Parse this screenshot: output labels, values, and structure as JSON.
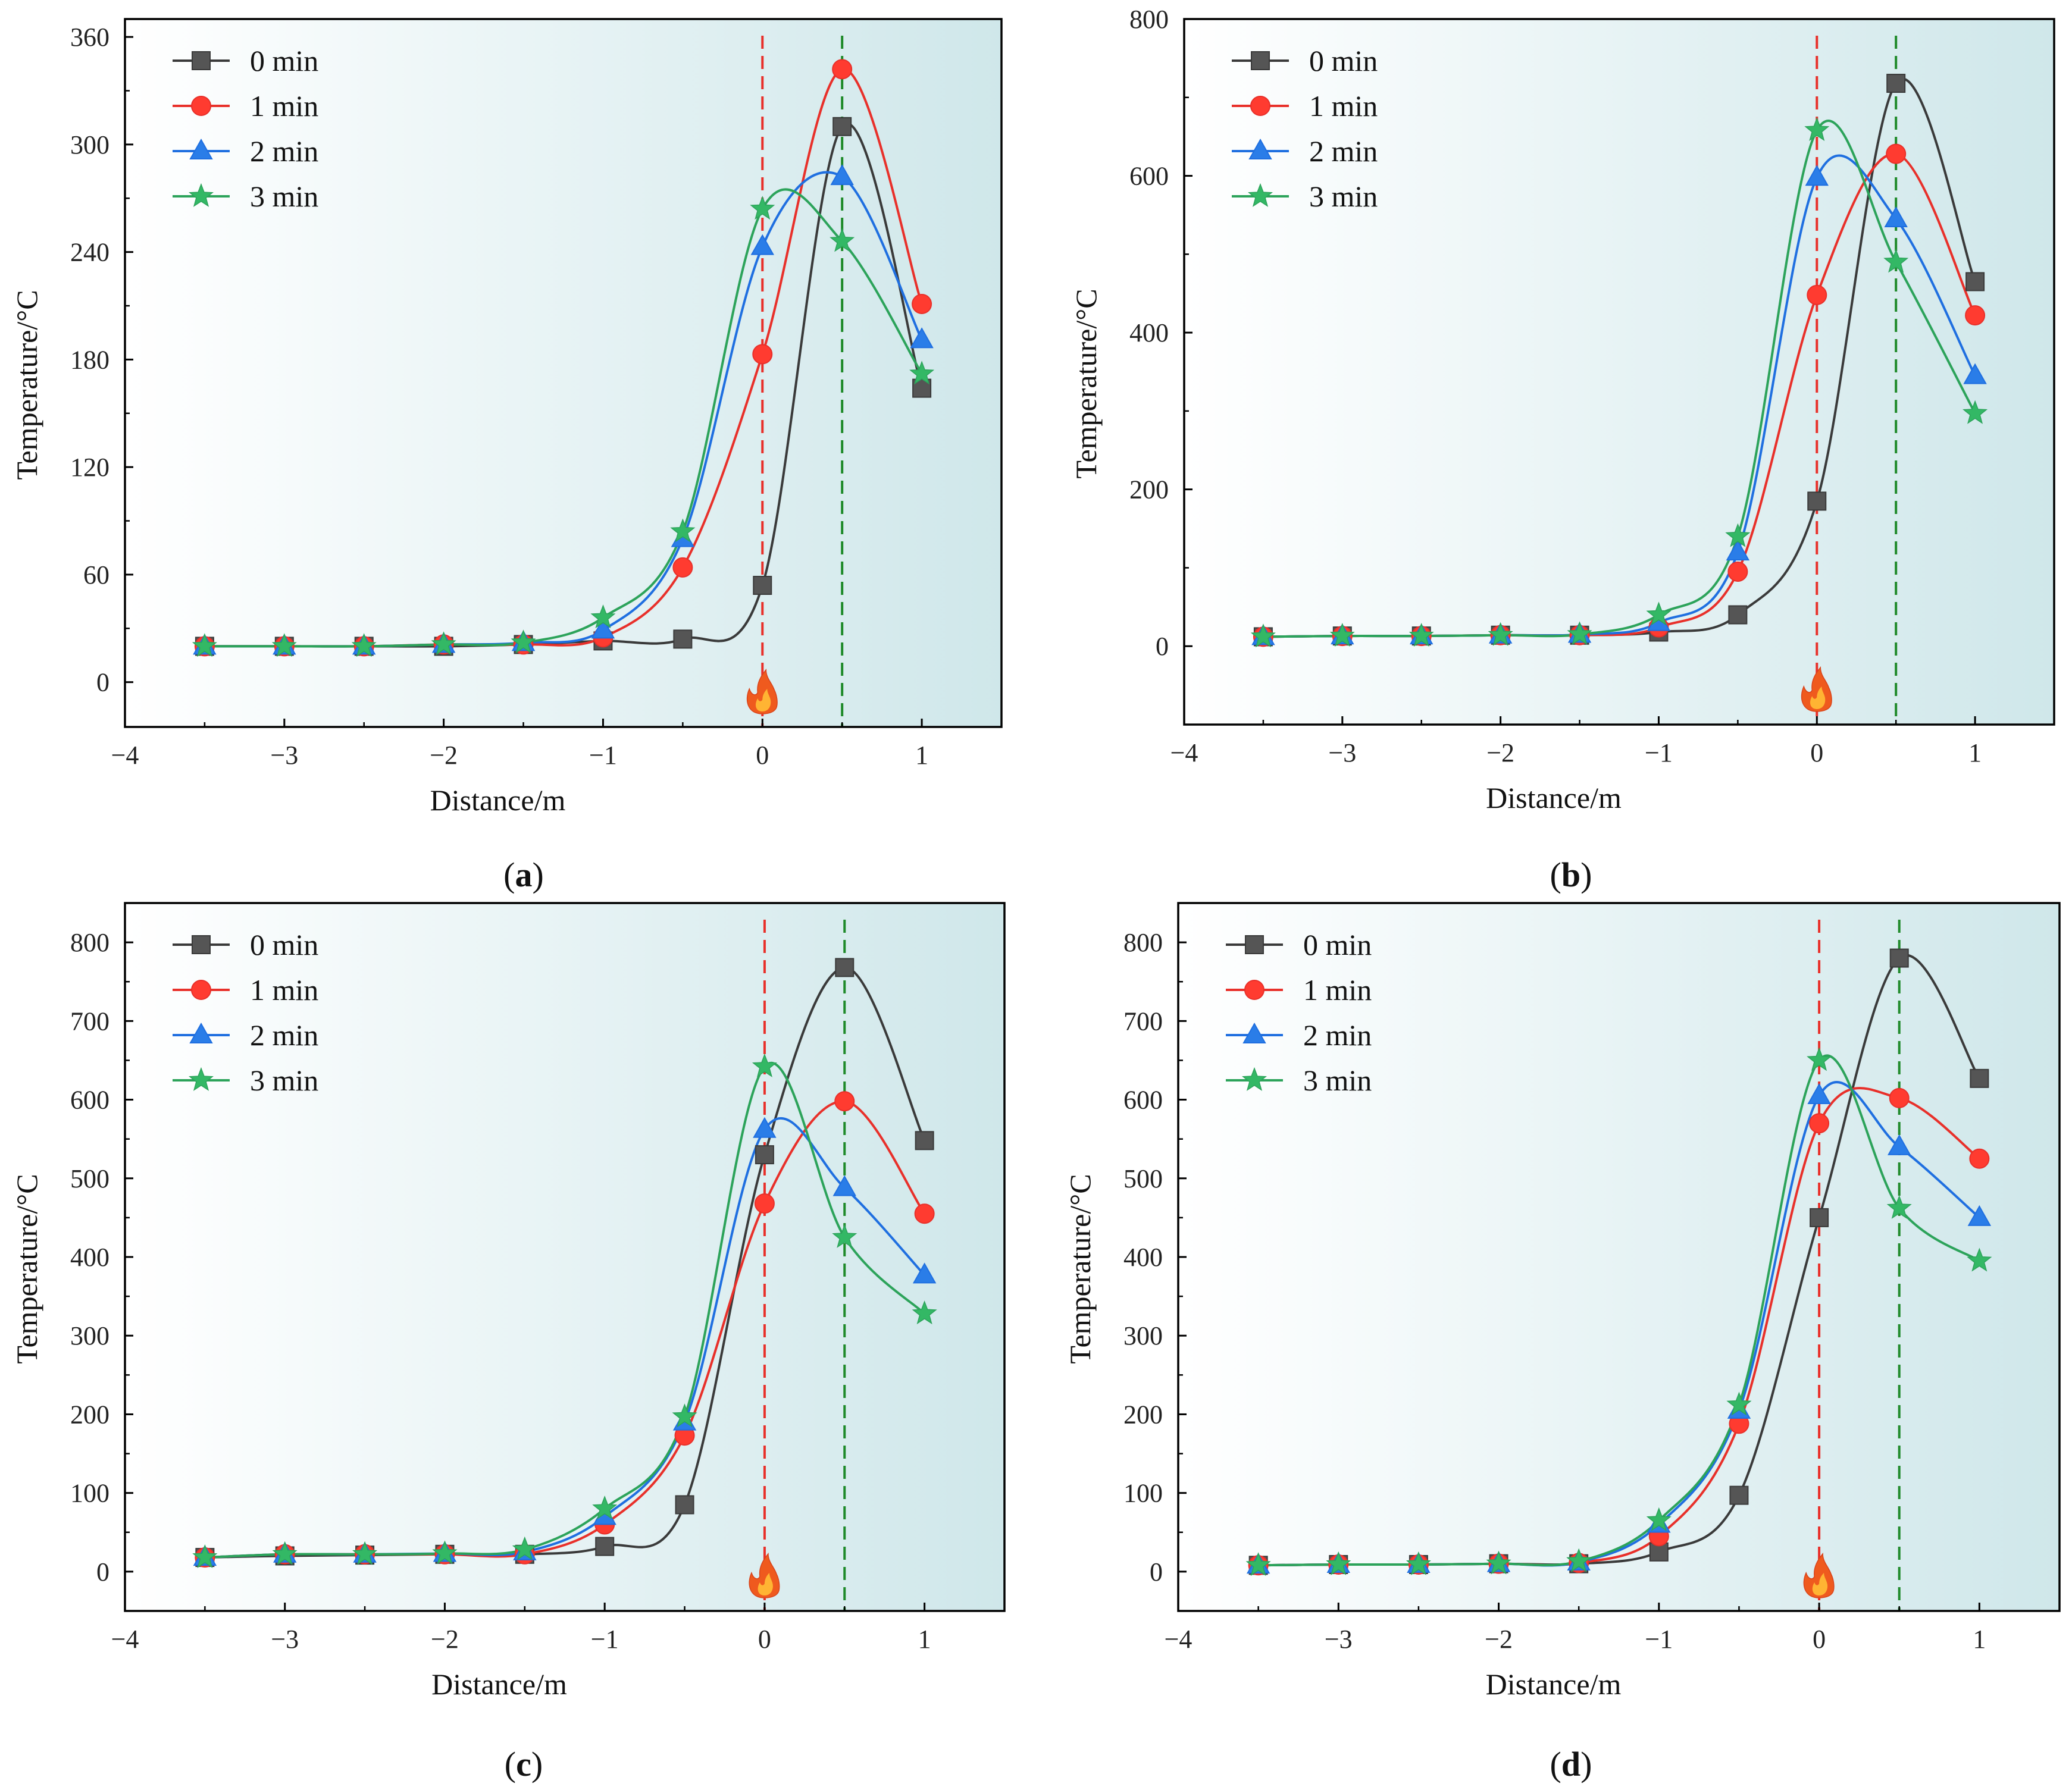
{
  "figure": {
    "fire_icon": "fire-icon",
    "colors": {
      "series": [
        "#3a3a3a",
        "#e8302a",
        "#1f6fe0",
        "#2ca35a"
      ],
      "marker_fill": [
        "#555555",
        "#ff3b30",
        "#2a7de8",
        "#33b865"
      ],
      "fire_line": "#e8302a",
      "peak_line": "#1f8a2a",
      "bg_start": "#ffffff",
      "bg_end": "#cfe7ea"
    }
  },
  "chart_data": [
    {
      "type": "line",
      "panel": "a",
      "panel_letter": "a",
      "xlabel": "Distance/m",
      "ylabel": "Temperature/°C",
      "xlim": [
        -4,
        1.5
      ],
      "ylim": [
        -25,
        370
      ],
      "xticks": [
        -4,
        -3,
        -2,
        -1,
        0,
        1
      ],
      "xtick_labels": [
        "−4",
        "−3",
        "−2",
        "−1",
        "0",
        "1"
      ],
      "yticks": [
        0,
        60,
        120,
        180,
        240,
        300,
        360
      ],
      "ytick_labels": [
        "0",
        "60",
        "120",
        "180",
        "240",
        "300",
        "360"
      ],
      "fire_line_x": 0,
      "peak_line_x": 0.5,
      "legend_position": "top-left",
      "x": [
        -3.5,
        -3,
        -2.5,
        -2,
        -1.5,
        -1,
        -0.5,
        0,
        0.5,
        1
      ],
      "series": [
        {
          "name": "0 min",
          "marker": "square",
          "values": [
            20,
            20,
            20,
            20,
            21,
            23,
            24,
            54,
            310,
            164
          ]
        },
        {
          "name": "1 min",
          "marker": "circle",
          "values": [
            20,
            20,
            20,
            21,
            21,
            25,
            64,
            183,
            342,
            211
          ]
        },
        {
          "name": "2 min",
          "marker": "triangle",
          "values": [
            20,
            20,
            20,
            21,
            22,
            29,
            80,
            243,
            282,
            191
          ]
        },
        {
          "name": "3 min",
          "marker": "star",
          "values": [
            20,
            20,
            20,
            21,
            22,
            36,
            84,
            264,
            246,
            172
          ]
        }
      ]
    },
    {
      "type": "line",
      "panel": "b",
      "panel_letter": "b",
      "xlabel": "Distance/m",
      "ylabel": "Temperature/°C",
      "xlim": [
        -4,
        1.5
      ],
      "ylim": [
        -100,
        800
      ],
      "xticks": [
        -4,
        -3,
        -2,
        -1,
        0,
        1
      ],
      "xtick_labels": [
        "−4",
        "−3",
        "−2",
        "−1",
        "0",
        "1"
      ],
      "yticks": [
        0,
        200,
        400,
        600,
        800
      ],
      "ytick_labels": [
        "0",
        "200",
        "400",
        "600",
        "800"
      ],
      "fire_line_x": 0,
      "peak_line_x": 0.5,
      "legend_position": "top-left",
      "x": [
        -3.5,
        -3,
        -2.5,
        -2,
        -1.5,
        -1,
        -0.5,
        0,
        0.5,
        1
      ],
      "series": [
        {
          "name": "0 min",
          "marker": "square",
          "values": [
            12,
            13,
            13,
            14,
            14,
            18,
            40,
            185,
            718,
            465
          ]
        },
        {
          "name": "1 min",
          "marker": "circle",
          "values": [
            12,
            13,
            13,
            14,
            14,
            24,
            95,
            448,
            628,
            422
          ]
        },
        {
          "name": "2 min",
          "marker": "triangle",
          "values": [
            12,
            13,
            13,
            14,
            15,
            30,
            120,
            598,
            545,
            345
          ]
        },
        {
          "name": "3 min",
          "marker": "star",
          "values": [
            12,
            13,
            13,
            14,
            15,
            40,
            140,
            658,
            490,
            297
          ]
        }
      ]
    },
    {
      "type": "line",
      "panel": "c",
      "panel_letter": "c",
      "xlabel": "Distance/m",
      "ylabel": "Temperature/°C",
      "xlim": [
        -4,
        1.5
      ],
      "ylim": [
        -50,
        850
      ],
      "xticks": [
        -4,
        -3,
        -2,
        -1,
        0,
        1
      ],
      "xtick_labels": [
        "−4",
        "−3",
        "−2",
        "−1",
        "0",
        "1"
      ],
      "yticks": [
        0,
        100,
        200,
        300,
        400,
        500,
        600,
        700,
        800
      ],
      "ytick_labels": [
        "0",
        "100",
        "200",
        "300",
        "400",
        "500",
        "600",
        "700",
        "800"
      ],
      "fire_line_x": 0,
      "peak_line_x": 0.5,
      "legend_position": "top-left",
      "x": [
        -3.5,
        -3,
        -2.5,
        -2,
        -1.5,
        -1,
        -0.5,
        0,
        0.5,
        1
      ],
      "series": [
        {
          "name": "0 min",
          "marker": "square",
          "values": [
            18,
            20,
            21,
            22,
            22,
            32,
            85,
            530,
            768,
            548
          ]
        },
        {
          "name": "1 min",
          "marker": "circle",
          "values": [
            18,
            22,
            22,
            22,
            22,
            60,
            173,
            468,
            598,
            455
          ]
        },
        {
          "name": "2 min",
          "marker": "triangle",
          "values": [
            18,
            22,
            22,
            23,
            25,
            70,
            190,
            562,
            488,
            377
          ]
        },
        {
          "name": "3 min",
          "marker": "star",
          "values": [
            18,
            22,
            22,
            23,
            28,
            80,
            197,
            642,
            425,
            328
          ]
        }
      ]
    },
    {
      "type": "line",
      "panel": "d",
      "panel_letter": "d",
      "xlabel": "Distance/m",
      "ylabel": "Temperature/°C",
      "xlim": [
        -4,
        1.5
      ],
      "ylim": [
        -50,
        850
      ],
      "xticks": [
        -4,
        -3,
        -2,
        -1,
        0,
        1
      ],
      "xtick_labels": [
        "−4",
        "−3",
        "−2",
        "−1",
        "0",
        "1"
      ],
      "yticks": [
        0,
        100,
        200,
        300,
        400,
        500,
        600,
        700,
        800
      ],
      "ytick_labels": [
        "0",
        "100",
        "200",
        "300",
        "400",
        "500",
        "600",
        "700",
        "800"
      ],
      "fire_line_x": 0,
      "peak_line_x": 0.5,
      "legend_position": "top-left",
      "x": [
        -3.5,
        -3,
        -2.5,
        -2,
        -1.5,
        -1,
        -0.5,
        0,
        0.5,
        1
      ],
      "series": [
        {
          "name": "0 min",
          "marker": "square",
          "values": [
            8,
            9,
            9,
            10,
            10,
            25,
            97,
            450,
            780,
            627
          ]
        },
        {
          "name": "1 min",
          "marker": "circle",
          "values": [
            8,
            9,
            9,
            10,
            11,
            45,
            188,
            570,
            602,
            525
          ]
        },
        {
          "name": "2 min",
          "marker": "triangle",
          "values": [
            8,
            9,
            9,
            10,
            12,
            60,
            205,
            605,
            540,
            450
          ]
        },
        {
          "name": "3 min",
          "marker": "star",
          "values": [
            8,
            9,
            9,
            10,
            13,
            65,
            212,
            650,
            462,
            395
          ]
        }
      ]
    }
  ]
}
